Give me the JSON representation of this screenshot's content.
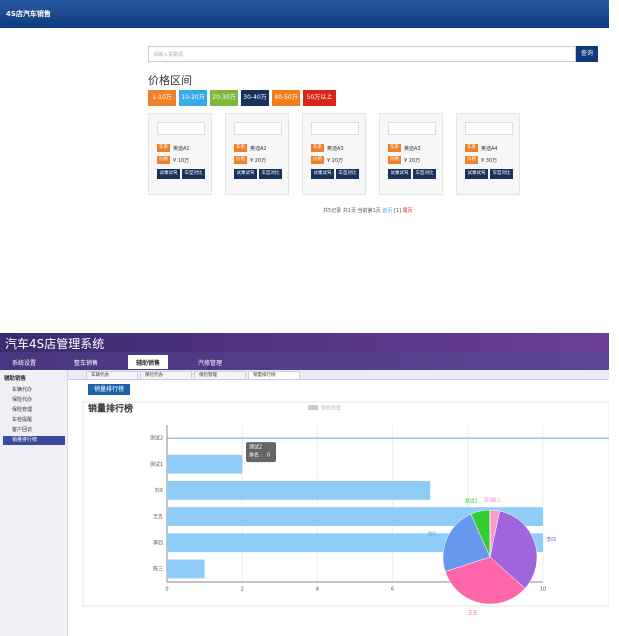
{
  "shop": {
    "header": "4S店汽车销售",
    "search_placeholder": "请输入关键词",
    "search_button": "查询",
    "price_title": "价格区间",
    "price_ranges": [
      {
        "label": "1-10万",
        "color": "#f0812a"
      },
      {
        "label": "10-20万",
        "color": "#39a9e8"
      },
      {
        "label": "20-30万",
        "color": "#7cba3f"
      },
      {
        "label": "30-40万",
        "color": "#17325c"
      },
      {
        "label": "40-50万",
        "color": "#f07e1e"
      },
      {
        "label": "50万以上",
        "color": "#d9261c"
      }
    ],
    "tags": {
      "series": "车系",
      "price": "价格"
    },
    "actions": [
      "试乘试驾",
      "车型对比"
    ],
    "cars": [
      {
        "series": "奥迪A1",
        "price": "¥ 10万"
      },
      {
        "series": "奥迪A2",
        "price": "¥ 20万"
      },
      {
        "series": "奥迪A3",
        "price": "¥ 20万"
      },
      {
        "series": "奥迪A3",
        "price": "¥ 20万"
      },
      {
        "series": "奥迪A4",
        "price": "¥ 30万"
      }
    ],
    "pagination": {
      "summary": "共5记录 共1页 当前第1页",
      "first": "首页",
      "page": "[1]",
      "last": "尾页"
    }
  },
  "admin": {
    "title": "汽车4S店管理系统",
    "nav": [
      "系统设置",
      "整车销售",
      "辅助销售",
      "汽修管理"
    ],
    "sidebar_header": "辅助销售",
    "sidebar": [
      "车辆代办",
      "保险代办",
      "保险管理",
      "车检提醒",
      "客户回访",
      "销量排行榜"
    ],
    "tabs": [
      "车辆代办",
      "保险代办",
      "保险管理",
      "销量排行榜"
    ],
    "button": "销量排行榜"
  },
  "chart_data": {
    "type": "bar",
    "orientation": "horizontal",
    "title": "销量排行榜",
    "legend": "销售数量",
    "categories": [
      "测试2",
      "测试1",
      "刘X",
      "王五",
      "李四",
      "陈三"
    ],
    "values": [
      0,
      2,
      7,
      10,
      10,
      1
    ],
    "color": "#8fcdf8",
    "xlim": [
      0,
      10
    ],
    "xticks": [
      0,
      2,
      4,
      6,
      8,
      10
    ],
    "tooltip": {
      "label": "排名 :"
    },
    "pie": {
      "colors": [
        "#ff99cc",
        "#a064dc",
        "#ff66aa",
        "#6699ee",
        "#33cc33",
        "#f5a0d8"
      ]
    }
  }
}
